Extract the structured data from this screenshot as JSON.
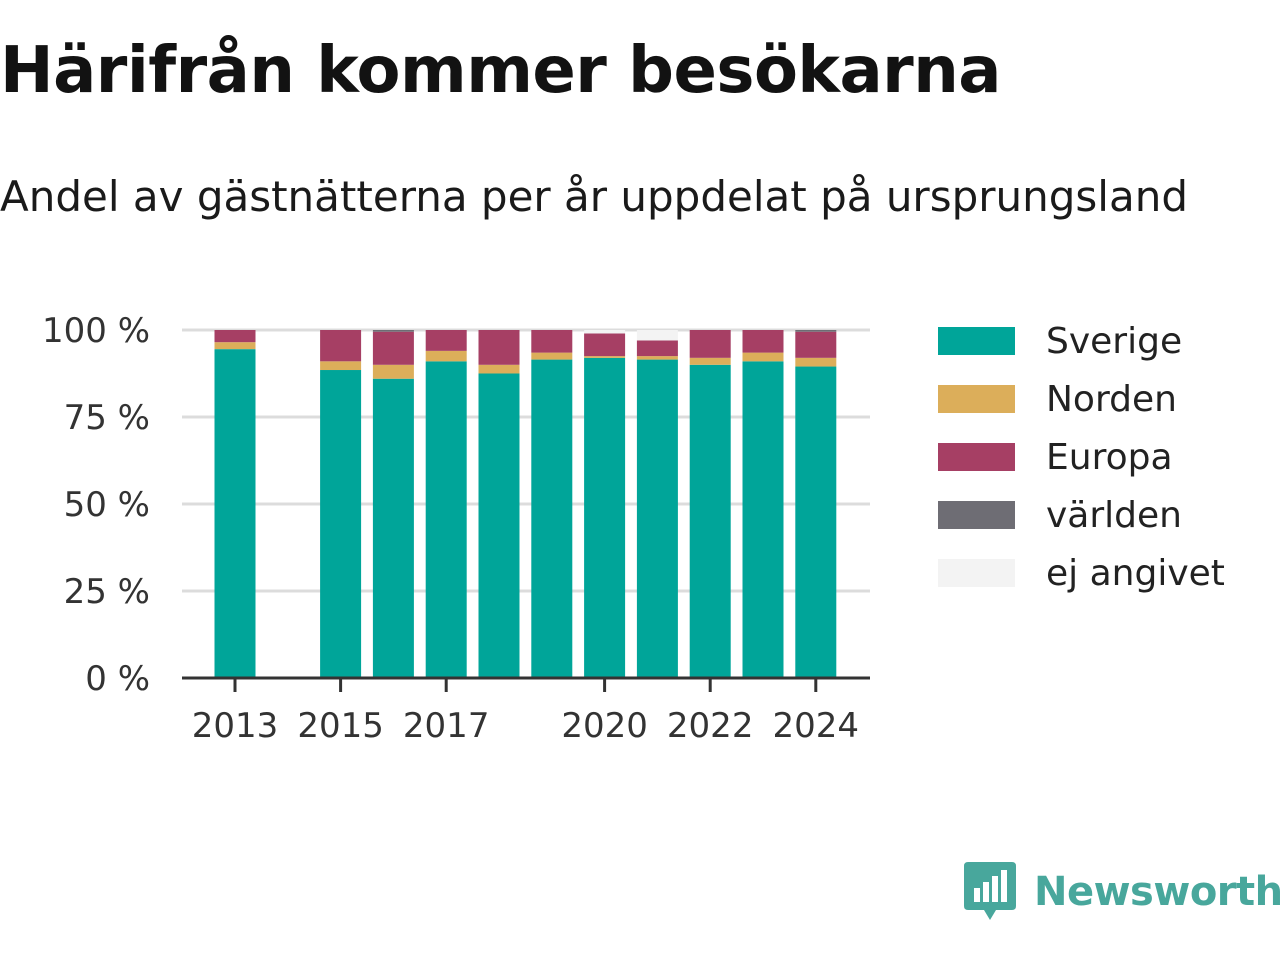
{
  "title": "Härifrån kommer besökarna",
  "subtitle": "Andel av gästnätterna per år uppdelat på ursprungsland",
  "brand": {
    "name": "Newsworthy",
    "icon": "bar-chart-speech-bubble-icon",
    "color": "#48a79c"
  },
  "chart_data": {
    "type": "bar",
    "stacked": true,
    "categories": [
      "2013",
      "2014",
      "2015",
      "2016",
      "2017",
      "2018",
      "2019",
      "2020",
      "2021",
      "2022",
      "2023",
      "2024"
    ],
    "x_tick_labels": [
      "2013",
      "2015",
      "2017",
      "2020",
      "2022",
      "2024"
    ],
    "y_tick_labels": [
      "0 %",
      "25 %",
      "50 %",
      "75 %",
      "100 %"
    ],
    "ylim": [
      0,
      100
    ],
    "grid": true,
    "legend_position": "right",
    "series": [
      {
        "name": "Sverige",
        "color": "#00a599",
        "values": [
          94.5,
          null,
          88.5,
          86,
          91,
          87.5,
          91.5,
          92,
          91.5,
          90,
          91,
          89.5
        ]
      },
      {
        "name": "Norden",
        "color": "#dcae5a",
        "values": [
          2,
          null,
          2.5,
          4,
          3,
          2.5,
          2,
          0.5,
          1,
          2,
          2.5,
          2.5
        ]
      },
      {
        "name": "Europa",
        "color": "#a63f64",
        "values": [
          3.5,
          null,
          9,
          9.5,
          6,
          10,
          6.5,
          6.5,
          4.5,
          8,
          6.5,
          7.5
        ]
      },
      {
        "name": "världen",
        "color": "#6e6d74",
        "values": [
          0,
          null,
          0,
          0.5,
          0,
          0,
          0,
          0,
          0,
          0,
          0,
          0.5
        ]
      },
      {
        "name": "ej angivet",
        "color": "#f3f3f3",
        "values": [
          0,
          null,
          0,
          0,
          0,
          0,
          0,
          1,
          3,
          0,
          0,
          0
        ]
      }
    ]
  }
}
